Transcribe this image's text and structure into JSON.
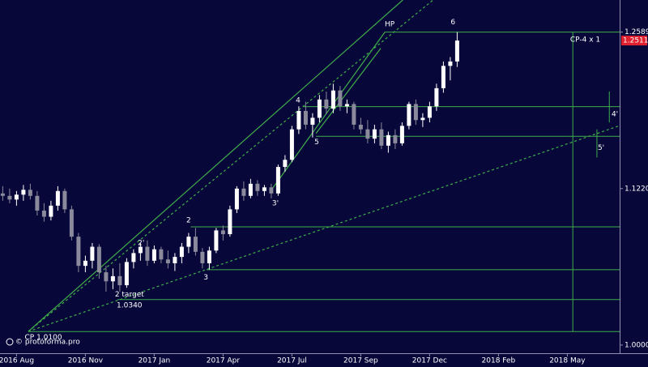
{
  "chart_data": {
    "type": "candlestick",
    "log_scale": true,
    "colors": {
      "up": "#ffffff",
      "down": "#8a8a9c",
      "level": "#3fae49"
    },
    "xlim": [
      -2.4,
      87.6
    ],
    "ylim": [
      0.994,
      1.289
    ],
    "xticks": [
      {
        "value": 0,
        "label": "2016 Aug"
      },
      {
        "value": 10,
        "label": "2016 Nov"
      },
      {
        "value": 20,
        "label": "2017 Jan"
      },
      {
        "value": 30,
        "label": "2017 Apr"
      },
      {
        "value": 40,
        "label": "2017 Jul"
      },
      {
        "value": 50,
        "label": "2017 Sep"
      },
      {
        "value": 60,
        "label": "2017 Dec"
      },
      {
        "value": 70,
        "label": "2018 Feb"
      },
      {
        "value": 80,
        "label": "2018 May"
      }
    ],
    "yticks": [
      1.2589,
      {
        "value": 1.122,
        "label": "1.1220"
      },
      {
        "value": 1,
        "label": "1.0000"
      }
    ],
    "last_price": 1.2511,
    "x": [
      -2,
      -1,
      0,
      1,
      2,
      3,
      4,
      5,
      6,
      7,
      8,
      9,
      10,
      11,
      12,
      13,
      14,
      15,
      16,
      17,
      18,
      19,
      20,
      21,
      22,
      23,
      24,
      25,
      26,
      27,
      28,
      29,
      30,
      31,
      32,
      33,
      34,
      35,
      36,
      37,
      38,
      39,
      40,
      41,
      42,
      43,
      44,
      45,
      46,
      47,
      48,
      49,
      50,
      51,
      52,
      53,
      54,
      55,
      56,
      57,
      58,
      59,
      60,
      61,
      62,
      63,
      64
    ],
    "open": [
      1.118,
      1.116,
      1.113,
      1.117,
      1.121,
      1.116,
      1.104,
      1.099,
      1.108,
      1.12,
      1.105,
      1.083,
      1.06,
      1.064,
      1.075,
      1.055,
      1.048,
      1.052,
      1.045,
      1.063,
      1.07,
      1.075,
      1.064,
      1.073,
      1.065,
      1.062,
      1.067,
      1.075,
      1.083,
      1.071,
      1.062,
      1.072,
      1.088,
      1.085,
      1.105,
      1.122,
      1.116,
      1.126,
      1.12,
      1.123,
      1.118,
      1.14,
      1.146,
      1.172,
      1.188,
      1.176,
      1.182,
      1.198,
      1.19,
      1.206,
      1.192,
      1.194,
      1.176,
      1.172,
      1.164,
      1.172,
      1.158,
      1.167,
      1.16,
      1.175,
      1.194,
      1.18,
      1.182,
      1.192,
      1.208,
      1.228,
      1.232
    ],
    "high": [
      1.124,
      1.122,
      1.12,
      1.125,
      1.126,
      1.12,
      1.11,
      1.112,
      1.124,
      1.122,
      1.108,
      1.086,
      1.068,
      1.078,
      1.077,
      1.06,
      1.058,
      1.062,
      1.066,
      1.073,
      1.078,
      1.08,
      1.076,
      1.075,
      1.072,
      1.07,
      1.078,
      1.086,
      1.09,
      1.074,
      1.075,
      1.09,
      1.092,
      1.108,
      1.124,
      1.128,
      1.13,
      1.129,
      1.125,
      1.126,
      1.142,
      1.15,
      1.175,
      1.192,
      1.196,
      1.186,
      1.202,
      1.205,
      1.212,
      1.21,
      1.198,
      1.196,
      1.182,
      1.18,
      1.176,
      1.178,
      1.17,
      1.172,
      1.178,
      1.196,
      1.198,
      1.186,
      1.196,
      1.212,
      1.232,
      1.236,
      1.2589
    ],
    "low": [
      1.112,
      1.11,
      1.108,
      1.112,
      1.113,
      1.1,
      1.095,
      1.096,
      1.104,
      1.102,
      1.08,
      1.055,
      1.055,
      1.058,
      1.05,
      1.04,
      1.042,
      1.04,
      1.043,
      1.058,
      1.064,
      1.06,
      1.062,
      1.062,
      1.058,
      1.056,
      1.062,
      1.07,
      1.068,
      1.058,
      1.057,
      1.07,
      1.08,
      1.083,
      1.102,
      1.112,
      1.114,
      1.116,
      1.116,
      1.114,
      1.116,
      1.136,
      1.144,
      1.168,
      1.172,
      1.165,
      1.178,
      1.185,
      1.186,
      1.188,
      1.186,
      1.172,
      1.168,
      1.16,
      1.16,
      1.155,
      1.152,
      1.155,
      1.158,
      1.172,
      1.176,
      1.174,
      1.178,
      1.188,
      1.204,
      1.215,
      1.227
    ],
    "close": [
      1.116,
      1.113,
      1.117,
      1.121,
      1.116,
      1.104,
      1.099,
      1.108,
      1.12,
      1.105,
      1.083,
      1.06,
      1.064,
      1.075,
      1.055,
      1.048,
      1.052,
      1.045,
      1.063,
      1.07,
      1.075,
      1.064,
      1.073,
      1.065,
      1.062,
      1.067,
      1.075,
      1.083,
      1.071,
      1.062,
      1.072,
      1.088,
      1.085,
      1.105,
      1.122,
      1.116,
      1.126,
      1.12,
      1.123,
      1.118,
      1.14,
      1.146,
      1.172,
      1.188,
      1.176,
      1.182,
      1.198,
      1.19,
      1.206,
      1.192,
      1.194,
      1.176,
      1.172,
      1.164,
      1.172,
      1.158,
      1.167,
      1.16,
      1.175,
      1.194,
      1.18,
      1.182,
      1.192,
      1.208,
      1.228,
      1.232,
      1.2511
    ],
    "levels": [
      {
        "value": 1.2589,
        "from": 53.5
      },
      {
        "value": 1.1917,
        "from": 41.6
      },
      {
        "value": 1.166,
        "from": 43.5
      },
      {
        "value": 1.0909,
        "from": 25.3
      },
      {
        "value": 1.057,
        "from": 27.6
      },
      {
        "value": 1.034,
        "from": 14.7
      },
      {
        "value": 1.01,
        "from": 1.7
      }
    ],
    "verticals": [
      {
        "x": 80.8,
        "values": [
          1.01,
          1.2589
        ]
      },
      {
        "x": 86.1,
        "values": [
          1.178,
          1.205
        ]
      },
      {
        "x": 84.3,
        "values": [
          1.148,
          1.172
        ]
      }
    ],
    "trendlines": [
      {
        "style": "solid",
        "x": [
          1.7,
          56.1
        ],
        "values": [
          1.01,
          1.289
        ]
      },
      {
        "style": "dotted",
        "x": [
          1.7,
          60.5
        ],
        "values": [
          1.01,
          1.289
        ]
      },
      {
        "style": "dotted",
        "x": [
          1.7,
          87.6
        ],
        "values": [
          1.01,
          1.1752
        ]
      },
      {
        "style": "solid",
        "x": [
          37.0,
          53.5
        ],
        "values": [
          1.1207,
          1.2589
        ]
      },
      {
        "style": "solid",
        "x": [
          43.5,
          52.9
        ],
        "values": [
          1.1685,
          1.244
        ]
      }
    ],
    "labels": [
      {
        "text": "HP",
        "x": 54.2,
        "y": 1.266
      },
      {
        "text": "6",
        "x": 63.4,
        "y": 1.268
      },
      {
        "text": "CP-4 x 1",
        "x": 82.6,
        "y": 1.252
      },
      {
        "text": "4",
        "x": 40.9,
        "y": 1.197
      },
      {
        "text": "5",
        "x": 43.6,
        "y": 1.161
      },
      {
        "text": "3'",
        "x": 37.6,
        "y": 1.11
      },
      {
        "text": "2",
        "x": 25.0,
        "y": 1.096
      },
      {
        "text": "2'",
        "x": 18.1,
        "y": 1.078
      },
      {
        "text": "3",
        "x": 27.5,
        "y": 1.051
      },
      {
        "text": "2 target",
        "x": 16.4,
        "y": 1.038
      },
      {
        "text": "1.0340",
        "x": 16.4,
        "y": 1.0295
      },
      {
        "text": "CP 1.0100",
        "x": 3.9,
        "y": 1.0055
      },
      {
        "text": "4'",
        "x": 86.9,
        "y": 1.185
      },
      {
        "text": "5'",
        "x": 84.9,
        "y": 1.156
      }
    ],
    "watermark": "© protoforma.pro"
  }
}
